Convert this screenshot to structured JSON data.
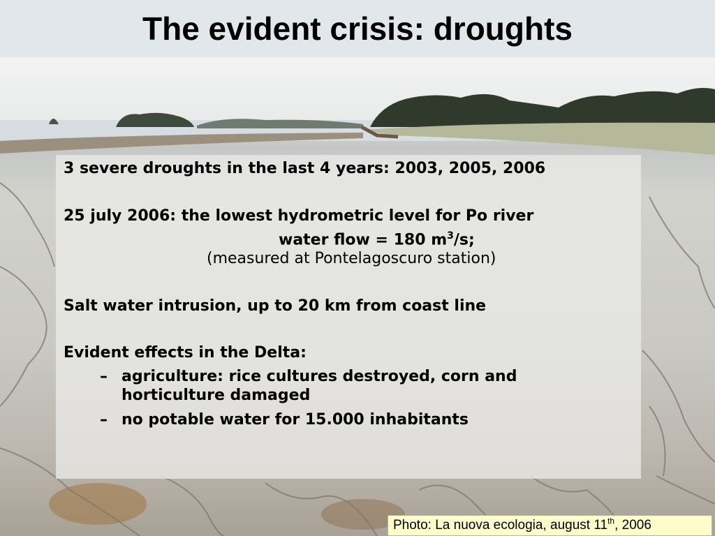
{
  "slide": {
    "title": "The evident crisis: droughts"
  },
  "photo": {
    "icon": "dry-riverbed-photo"
  },
  "content": {
    "point1": "3 severe droughts in the last 4 years: 2003, 2005, 2006",
    "point2_line1": "25 july 2006: the lowest hydrometric level for Po river",
    "point2_line2_prefix": "water flow = 180 m",
    "point2_line2_sup": "3",
    "point2_line2_suffix": "/s;",
    "point2_line3": "(measured at Pontelagoscuro station)",
    "point3": "Salt water intrusion, up to 20 km from coast line",
    "point4": "Evident effects in the Delta:",
    "dash": "–",
    "sub1_line1": "agriculture: rice cultures destroyed, corn and",
    "sub1_line2": "horticulture damaged",
    "sub2": "no potable water for 15.000 inhabitants"
  },
  "credit": {
    "prefix": "Photo: La nuova ecologia, august 11",
    "sup": "th",
    "suffix": ", 2006"
  }
}
